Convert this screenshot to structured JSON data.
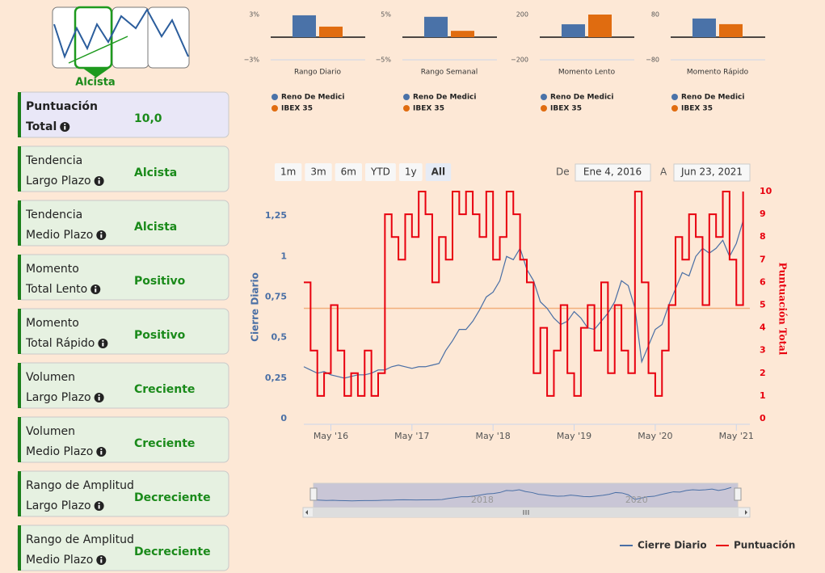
{
  "sidebar": {
    "badge": "Alcista",
    "cards": [
      {
        "lines": [
          "Puntuación",
          "Total"
        ],
        "value": "10,0"
      },
      {
        "lines": [
          "Tendencia",
          "Largo Plazo"
        ],
        "value": "Alcista"
      },
      {
        "lines": [
          "Tendencia",
          "Medio Plazo"
        ],
        "value": "Alcista"
      },
      {
        "lines": [
          "Momento",
          "Total Lento"
        ],
        "value": "Positivo"
      },
      {
        "lines": [
          "Momento",
          "Total Rápido"
        ],
        "value": "Positivo"
      },
      {
        "lines": [
          "Volumen",
          "Largo Plazo"
        ],
        "value": "Creciente"
      },
      {
        "lines": [
          "Volumen",
          "Medio Plazo"
        ],
        "value": "Creciente"
      },
      {
        "lines": [
          "Rango de Amplitud",
          "Largo Plazo"
        ],
        "value": "Decreciente"
      },
      {
        "lines": [
          "Rango de Amplitud",
          "Medio Plazo"
        ],
        "value": "Decreciente"
      }
    ]
  },
  "chart_data": [
    {
      "type": "bar",
      "xlabel": "Rango Diario",
      "categories": [
        null
      ],
      "ylim": [
        -3,
        3
      ],
      "yticks": [
        {
          "value": 3,
          "label": "3%"
        },
        {
          "value": -3,
          "label": "−3%"
        }
      ],
      "series": [
        {
          "name": "Reno De Medici",
          "color": "#4a72a8",
          "values": [
            2.9
          ]
        },
        {
          "name": "IBEX 35",
          "color": "#e06c10",
          "values": [
            1.4
          ]
        }
      ]
    },
    {
      "type": "bar",
      "xlabel": "Rango Semanal",
      "categories": [
        null
      ],
      "ylim": [
        -5,
        5
      ],
      "yticks": [
        {
          "value": 5,
          "label": "5%"
        },
        {
          "value": -5,
          "label": "−5%"
        }
      ],
      "series": [
        {
          "name": "Reno De Medici",
          "color": "#4a72a8",
          "values": [
            4.5
          ]
        },
        {
          "name": "IBEX 35",
          "color": "#e06c10",
          "values": [
            1.4
          ]
        }
      ]
    },
    {
      "type": "bar",
      "xlabel": "Momento Lento",
      "categories": [
        null
      ],
      "ylim": [
        -200,
        200
      ],
      "yticks": [
        200,
        {
          "value": -200,
          "label": "−200"
        }
      ],
      "series": [
        {
          "name": "Reno De Medici",
          "color": "#4a72a8",
          "values": [
            114
          ]
        },
        {
          "name": "IBEX 35",
          "color": "#e06c10",
          "values": [
            200
          ]
        }
      ]
    },
    {
      "type": "bar",
      "xlabel": "Momento Rápido",
      "categories": [
        null
      ],
      "ylim": [
        -80,
        80
      ],
      "yticks": [
        80,
        {
          "value": -80,
          "label": "−80"
        }
      ],
      "series": [
        {
          "name": "Reno De Medici",
          "color": "#4a72a8",
          "values": [
            66
          ]
        },
        {
          "name": "IBEX 35",
          "color": "#e06c10",
          "values": [
            46
          ]
        }
      ]
    },
    {
      "type": "line",
      "ylabel": "Cierre Diario",
      "y2label": "Puntuación Total",
      "range_buttons": [
        "1m",
        "3m",
        "6m",
        "YTD",
        "1y",
        "All"
      ],
      "date_from_label": "De",
      "date_from": "Ene 4, 2016",
      "date_to_label": "A",
      "date_to": "Jun 23, 2021",
      "x": [
        "2016-01",
        "2016-02",
        "2016-03",
        "2016-04",
        "2016-05",
        "2016-06",
        "2016-07",
        "2016-08",
        "2016-09",
        "2016-10",
        "2016-11",
        "2016-12",
        "2017-01",
        "2017-02",
        "2017-03",
        "2017-04",
        "2017-05",
        "2017-06",
        "2017-07",
        "2017-08",
        "2017-09",
        "2017-10",
        "2017-11",
        "2017-12",
        "2018-01",
        "2018-02",
        "2018-03",
        "2018-04",
        "2018-05",
        "2018-06",
        "2018-07",
        "2018-08",
        "2018-09",
        "2018-10",
        "2018-11",
        "2018-12",
        "2019-01",
        "2019-02",
        "2019-03",
        "2019-04",
        "2019-05",
        "2019-06",
        "2019-07",
        "2019-08",
        "2019-09",
        "2019-10",
        "2019-11",
        "2019-12",
        "2020-01",
        "2020-02",
        "2020-03",
        "2020-04",
        "2020-05",
        "2020-06",
        "2020-07",
        "2020-08",
        "2020-09",
        "2020-10",
        "2020-11",
        "2020-12",
        "2021-01",
        "2021-02",
        "2021-03",
        "2021-04",
        "2021-05",
        "2021-06"
      ],
      "xlim": [
        "2016-01",
        "2021-07"
      ],
      "xticks": [
        {
          "value": "2016-05",
          "label": "May '16"
        },
        {
          "value": "2017-05",
          "label": "May '17"
        },
        {
          "value": "2018-05",
          "label": "May '18"
        },
        {
          "value": "2019-05",
          "label": "May '19"
        },
        {
          "value": "2020-05",
          "label": "May '20"
        },
        {
          "value": "2021-05",
          "label": "May '21"
        }
      ],
      "ylim": [
        0,
        1.4
      ],
      "yticks": [
        0,
        {
          "value": 0.25,
          "label": "0,25"
        },
        {
          "value": 0.5,
          "label": "0,5"
        },
        {
          "value": 0.75,
          "label": "0,75"
        },
        1,
        {
          "value": 1.25,
          "label": "1,25"
        }
      ],
      "y2lim": [
        0,
        10
      ],
      "y2ticks": [
        0,
        1,
        2,
        3,
        4,
        5,
        6,
        7,
        8,
        9,
        10
      ],
      "threshold": {
        "value": 0.68,
        "color": "#f2b07c"
      },
      "series": [
        {
          "name": "Cierre Diario",
          "color": "#4a6fa5",
          "values": [
            0.32,
            0.3,
            0.28,
            0.29,
            0.27,
            0.26,
            0.25,
            0.26,
            0.27,
            0.27,
            0.28,
            0.3,
            0.3,
            0.32,
            0.33,
            0.32,
            0.31,
            0.32,
            0.32,
            0.33,
            0.34,
            0.42,
            0.48,
            0.55,
            0.55,
            0.6,
            0.67,
            0.75,
            0.78,
            0.85,
            1.0,
            0.98,
            1.05,
            0.92,
            0.85,
            0.72,
            0.68,
            0.62,
            0.58,
            0.6,
            0.66,
            0.62,
            0.56,
            0.55,
            0.6,
            0.65,
            0.72,
            0.85,
            0.82,
            0.68,
            0.35,
            0.45,
            0.55,
            0.58,
            0.7,
            0.8,
            0.9,
            0.88,
            1.0,
            1.05,
            1.02,
            1.05,
            1.1,
            1.0,
            1.08,
            1.22
          ]
        },
        {
          "name": "Puntuación",
          "color": "#e8000e",
          "axis": "y2",
          "values": [
            6,
            3,
            1,
            2,
            5,
            3,
            1,
            2,
            1,
            3,
            1,
            2,
            9,
            8,
            7,
            9,
            8,
            10,
            9,
            6,
            8,
            7,
            10,
            9,
            10,
            9,
            8,
            10,
            7,
            8,
            10,
            9,
            7,
            6,
            2,
            4,
            1,
            3,
            5,
            2,
            1,
            4,
            5,
            3,
            6,
            2,
            5,
            3,
            2,
            10,
            6,
            2,
            1,
            3,
            5,
            8,
            7,
            9,
            8,
            5,
            9,
            8,
            10,
            7,
            5,
            10
          ]
        }
      ],
      "navigator": {
        "xticks": [
          {
            "value": "2018-01",
            "label": "2018"
          },
          {
            "value": "2020-01",
            "label": "2020"
          }
        ]
      }
    }
  ]
}
